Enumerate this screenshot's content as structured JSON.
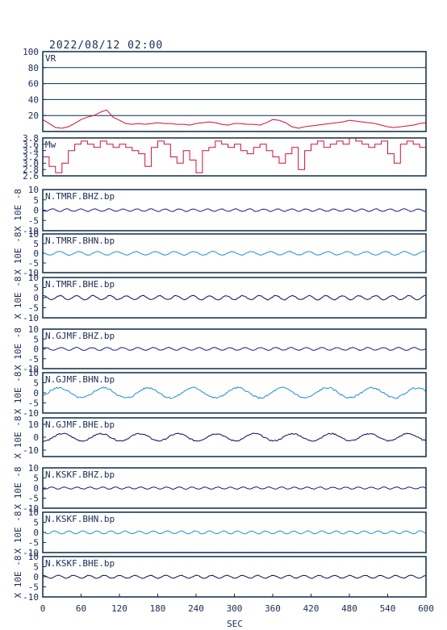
{
  "header": {
    "title": "2022/08/12 02:00"
  },
  "colors": {
    "frame": "#0d2b45",
    "grid": "#0d2b45",
    "vr": "#d0103a",
    "mw": "#d0103a",
    "bhz": "#1a1a8c",
    "bhn": "#1e90d0",
    "bhe": "#0a0a55",
    "text": "#1a2a55"
  },
  "xaxis": {
    "label": "SEC",
    "range": [
      0,
      600
    ],
    "ticks": [
      "0",
      "60",
      "120",
      "180",
      "240",
      "300",
      "360",
      "420",
      "480",
      "540",
      "600"
    ]
  },
  "chart_data": [
    {
      "type": "line",
      "label": "VR",
      "ylim": [
        0,
        100
      ],
      "grid": true,
      "yticks": [
        "100",
        "80",
        "60",
        "40",
        "20"
      ],
      "x": [
        0,
        10,
        20,
        30,
        40,
        50,
        60,
        70,
        80,
        90,
        100,
        110,
        120,
        130,
        140,
        150,
        160,
        170,
        180,
        190,
        200,
        210,
        220,
        230,
        240,
        250,
        260,
        270,
        280,
        290,
        300,
        310,
        320,
        330,
        340,
        350,
        360,
        370,
        380,
        390,
        400,
        410,
        420,
        430,
        440,
        450,
        460,
        470,
        480,
        490,
        500,
        510,
        520,
        530,
        540,
        550,
        560,
        570,
        580,
        590,
        600
      ],
      "y": [
        15,
        10,
        5,
        4,
        6,
        10,
        15,
        18,
        20,
        24,
        27,
        18,
        14,
        10,
        9,
        10,
        9,
        10,
        11,
        10,
        10,
        9,
        9,
        8,
        10,
        11,
        12,
        11,
        9,
        8,
        10,
        10,
        9,
        9,
        8,
        11,
        15,
        14,
        11,
        6,
        4,
        6,
        7,
        8,
        9,
        10,
        11,
        12,
        14,
        13,
        12,
        11,
        10,
        8,
        6,
        5,
        6,
        7,
        8,
        10,
        11
      ]
    },
    {
      "type": "line",
      "label": "Mw",
      "ylim": [
        2.6,
        3.8
      ],
      "yticks": [
        "3.8",
        "3.6",
        "3.4",
        "3.2",
        "3.0",
        "2.8",
        "2.6"
      ],
      "x": [
        0,
        10,
        20,
        30,
        40,
        50,
        60,
        70,
        80,
        90,
        100,
        110,
        120,
        130,
        140,
        150,
        160,
        170,
        180,
        190,
        200,
        210,
        220,
        230,
        240,
        250,
        260,
        270,
        280,
        290,
        300,
        310,
        320,
        330,
        340,
        350,
        360,
        370,
        380,
        390,
        400,
        410,
        420,
        430,
        440,
        450,
        460,
        470,
        480,
        490,
        500,
        510,
        520,
        530,
        540,
        550,
        560,
        570,
        580,
        590,
        600
      ],
      "y": [
        3.2,
        2.9,
        2.7,
        3.0,
        3.4,
        3.6,
        3.7,
        3.6,
        3.5,
        3.7,
        3.6,
        3.5,
        3.6,
        3.5,
        3.4,
        3.3,
        2.9,
        3.5,
        3.7,
        3.6,
        3.2,
        3.0,
        3.4,
        3.1,
        2.7,
        3.4,
        3.5,
        3.7,
        3.6,
        3.5,
        3.6,
        3.4,
        3.3,
        3.5,
        3.6,
        3.4,
        3.2,
        3.0,
        3.3,
        3.5,
        2.8,
        3.4,
        3.6,
        3.7,
        3.5,
        3.6,
        3.7,
        3.6,
        3.8,
        3.7,
        3.6,
        3.5,
        3.6,
        3.7,
        3.3,
        3.0,
        3.6,
        3.7,
        3.6,
        3.5,
        3.4
      ]
    },
    {
      "type": "line",
      "label": "N.TMRF.BHZ.bp",
      "ylim": [
        -10,
        10
      ],
      "yunit": "X 10E -8",
      "yticks": [
        "10",
        "5",
        "0",
        "-5",
        "-10"
      ],
      "color": "bhz",
      "amp": 0.6,
      "period": 22,
      "seed": 1
    },
    {
      "type": "line",
      "label": "N.TMRF.BHN.bp",
      "ylim": [
        -10,
        10
      ],
      "yunit": "X 10E -8",
      "yticks": [
        "10",
        "5",
        "0",
        "-5",
        "-10"
      ],
      "color": "bhn",
      "amp": 0.9,
      "period": 30,
      "seed": 2
    },
    {
      "type": "line",
      "label": "N.TMRF.BHE.bp",
      "ylim": [
        -10,
        10
      ],
      "yunit": "X 10E -8",
      "yticks": [
        "10",
        "5",
        "0",
        "-5",
        "-10"
      ],
      "color": "bhe",
      "amp": 1.0,
      "period": 26,
      "seed": 3
    },
    {
      "type": "line",
      "label": "N.GJMF.BHZ.bp",
      "ylim": [
        -10,
        10
      ],
      "yunit": "X 10E -8",
      "yticks": [
        "10",
        "5",
        "0",
        "-5",
        "-10"
      ],
      "color": "bhz",
      "amp": 0.7,
      "period": 24,
      "seed": 4
    },
    {
      "type": "line",
      "label": "N.GJMF.BHN.bp",
      "ylim": [
        -10,
        10
      ],
      "yunit": "X 10E -8",
      "yticks": [
        "10",
        "5",
        "0",
        "-5",
        "-10"
      ],
      "color": "bhn",
      "amp": 2.5,
      "period": 70,
      "seed": 5
    },
    {
      "type": "line",
      "label": "N.GJMF.BHE.bp",
      "ylim": [
        -15,
        15
      ],
      "yunit": "X 10E -8",
      "yticks": [
        "10",
        "0",
        "-10"
      ],
      "color": "bhe",
      "amp": 2.8,
      "period": 60,
      "seed": 6
    },
    {
      "type": "line",
      "label": "N.KSKF.BHZ.bp",
      "ylim": [
        -10,
        10
      ],
      "yunit": "X 10E -8",
      "yticks": [
        "10",
        "5",
        "0",
        "-5",
        "-10"
      ],
      "color": "bhz",
      "amp": 0.5,
      "period": 20,
      "seed": 7
    },
    {
      "type": "line",
      "label": "N.KSKF.BHN.bp",
      "ylim": [
        -10,
        10
      ],
      "yunit": "X 10E -8",
      "yticks": [
        "10",
        "5",
        "0",
        "-5",
        "-10"
      ],
      "color": "bhn",
      "amp": 0.7,
      "period": 22,
      "seed": 8
    },
    {
      "type": "line",
      "label": "N.KSKF.BHE.bp",
      "ylim": [
        -10,
        10
      ],
      "yunit": "X 10E -8",
      "yticks": [
        "10",
        "5",
        "0",
        "-5",
        "-10"
      ],
      "color": "bhe",
      "amp": 0.7,
      "period": 24,
      "seed": 9
    }
  ]
}
